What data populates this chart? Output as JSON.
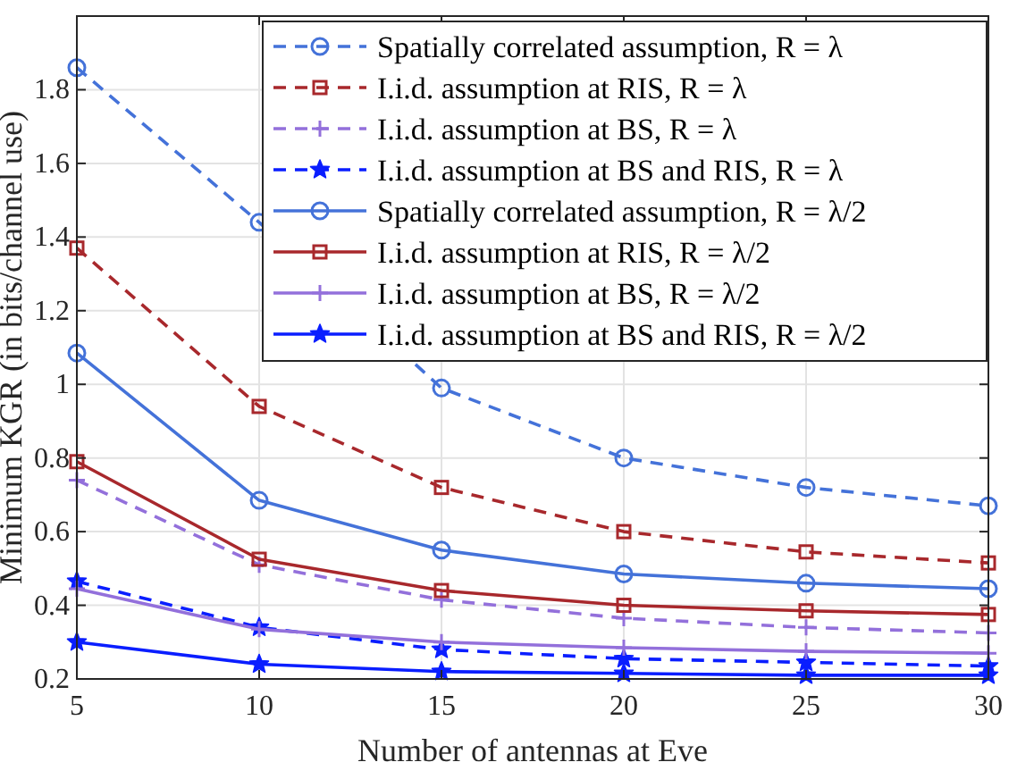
{
  "chart_data": {
    "type": "line",
    "xlabel": "Number of antennas at Eve",
    "ylabel": "Minimum KGR (in bits/channel use)",
    "x": [
      5,
      10,
      15,
      20,
      25,
      30
    ],
    "xlim": [
      5,
      30
    ],
    "xticks": [
      5,
      10,
      15,
      20,
      25,
      30
    ],
    "ylim": [
      0.2,
      2
    ],
    "yticks": [
      0.2,
      0.4,
      0.6,
      0.8,
      1,
      1.2,
      1.4,
      1.6,
      1.8
    ],
    "grid": true,
    "legend": "top right",
    "series": [
      {
        "name": "Spatially correlated assumption, R = λ",
        "color": "#4472d9",
        "line_style": "dashed",
        "marker": "circle",
        "values": [
          1.86,
          1.44,
          0.99,
          0.8,
          0.72,
          0.67
        ]
      },
      {
        "name": "I.i.d. assumption at RIS, R = λ",
        "color": "#a8282c",
        "line_style": "dashed",
        "marker": "square",
        "values": [
          1.37,
          0.94,
          0.72,
          0.6,
          0.545,
          0.515
        ]
      },
      {
        "name": "I.i.d. assumption at BS, R = λ",
        "color": "#9370db",
        "line_style": "dashed",
        "marker": "cross",
        "values": [
          0.74,
          0.51,
          0.415,
          0.365,
          0.34,
          0.325
        ]
      },
      {
        "name": "I.i.d. assumption at BS and RIS, R = λ",
        "color": "#0a1eff",
        "line_style": "dashed",
        "marker": "star",
        "values": [
          0.465,
          0.34,
          0.28,
          0.255,
          0.245,
          0.235
        ]
      },
      {
        "name": "Spatially correlated assumption, R = λ/2",
        "color": "#4472d9",
        "line_style": "solid",
        "marker": "circle",
        "values": [
          1.085,
          0.685,
          0.55,
          0.485,
          0.46,
          0.445
        ]
      },
      {
        "name": "I.i.d. assumption at RIS, R = λ/2",
        "color": "#a8282c",
        "line_style": "solid",
        "marker": "square",
        "values": [
          0.79,
          0.525,
          0.44,
          0.4,
          0.385,
          0.375
        ]
      },
      {
        "name": "I.i.d. assumption at BS, R = λ/2",
        "color": "#9370db",
        "line_style": "solid",
        "marker": "cross",
        "values": [
          0.445,
          0.335,
          0.3,
          0.285,
          0.275,
          0.27
        ]
      },
      {
        "name": "I.i.d. assumption at BS and RIS, R = λ/2",
        "color": "#0a1eff",
        "line_style": "solid",
        "marker": "star",
        "values": [
          0.3,
          0.24,
          0.22,
          0.215,
          0.21,
          0.21
        ]
      }
    ]
  }
}
